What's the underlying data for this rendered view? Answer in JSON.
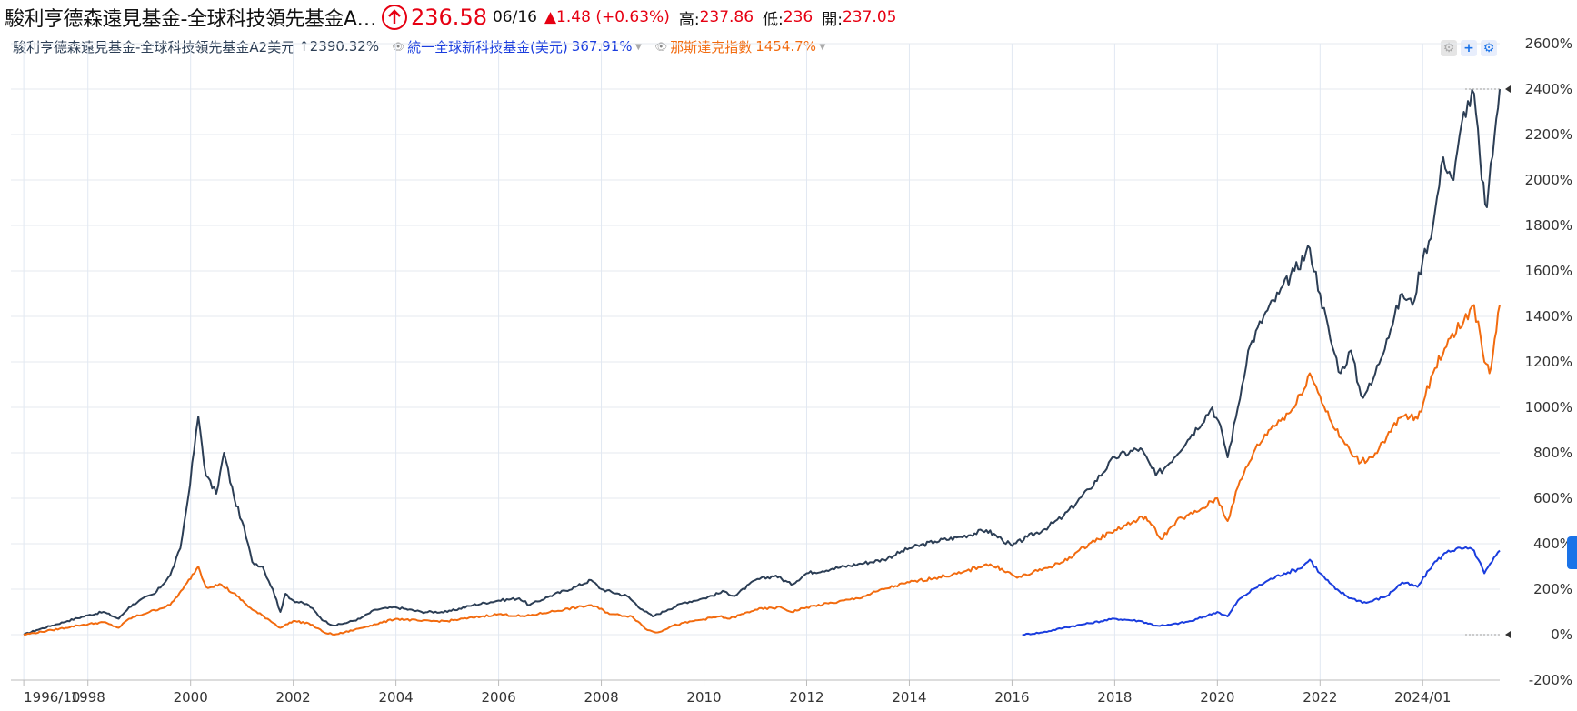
{
  "header": {
    "title": "駿利亨德森遠見基金-全球科技領先基金A…",
    "price": "236.58",
    "date": "06/16",
    "change": "▲1.48 (+0.63%)",
    "high_label": "高:",
    "high": "237.86",
    "low_label": "低:",
    "low": "236",
    "open_label": "開:",
    "open": "237.05"
  },
  "legend": [
    {
      "name": "駿利亨德森遠見基金-全球科技領先基金A2美元",
      "value": "↑2390.32%",
      "color": "#2c3e55"
    },
    {
      "name": "統一全球新科技基金(美元)",
      "value": "367.91%",
      "color": "#1a3dde"
    },
    {
      "name": "那斯達克指數",
      "value": "1454.7%",
      "color": "#f26b0f"
    }
  ],
  "chart_data": {
    "type": "line",
    "xlabel": "",
    "ylabel": "",
    "xlim": [
      1996.5,
      2025.5
    ],
    "ylim": [
      -200,
      2600
    ],
    "x_ticks": [
      "1996/10",
      "1998",
      "2000",
      "2002",
      "2004",
      "2006",
      "2008",
      "2010",
      "2012",
      "2014",
      "2016",
      "2018",
      "2020",
      "2022",
      "2024/01"
    ],
    "y_ticks": [
      "2600%",
      "2400%",
      "2200%",
      "2000%",
      "1800%",
      "1600%",
      "1400%",
      "1200%",
      "1000%",
      "800%",
      "600%",
      "400%",
      "200%",
      "0%",
      "-200%"
    ],
    "grid": true,
    "series": [
      {
        "name": "駿利亨德森遠見基金-全球科技領先基金A2美元",
        "color": "#2c3e55",
        "points": [
          [
            1996.75,
            0
          ],
          [
            1997.0,
            20
          ],
          [
            1997.3,
            40
          ],
          [
            1997.6,
            60
          ],
          [
            1998.0,
            85
          ],
          [
            1998.3,
            100
          ],
          [
            1998.6,
            70
          ],
          [
            1998.8,
            120
          ],
          [
            1999.0,
            150
          ],
          [
            1999.3,
            180
          ],
          [
            1999.6,
            260
          ],
          [
            1999.8,
            380
          ],
          [
            1999.95,
            600
          ],
          [
            2000.15,
            960
          ],
          [
            2000.3,
            700
          ],
          [
            2000.5,
            620
          ],
          [
            2000.65,
            800
          ],
          [
            2000.85,
            600
          ],
          [
            2001.0,
            500
          ],
          [
            2001.2,
            320
          ],
          [
            2001.4,
            300
          ],
          [
            2001.6,
            200
          ],
          [
            2001.75,
            100
          ],
          [
            2001.85,
            180
          ],
          [
            2002.0,
            150
          ],
          [
            2002.3,
            130
          ],
          [
            2002.6,
            60
          ],
          [
            2002.8,
            40
          ],
          [
            2003.0,
            50
          ],
          [
            2003.3,
            70
          ],
          [
            2003.6,
            110
          ],
          [
            2004.0,
            120
          ],
          [
            2004.5,
            100
          ],
          [
            2005.0,
            100
          ],
          [
            2005.5,
            130
          ],
          [
            2006.0,
            150
          ],
          [
            2006.4,
            160
          ],
          [
            2006.6,
            130
          ],
          [
            2007.0,
            170
          ],
          [
            2007.5,
            210
          ],
          [
            2007.8,
            240
          ],
          [
            2008.0,
            200
          ],
          [
            2008.5,
            170
          ],
          [
            2008.8,
            110
          ],
          [
            2009.0,
            80
          ],
          [
            2009.3,
            110
          ],
          [
            2009.6,
            140
          ],
          [
            2010.0,
            160
          ],
          [
            2010.4,
            190
          ],
          [
            2010.6,
            170
          ],
          [
            2011.0,
            240
          ],
          [
            2011.4,
            260
          ],
          [
            2011.7,
            220
          ],
          [
            2012.0,
            270
          ],
          [
            2012.5,
            290
          ],
          [
            2013.0,
            310
          ],
          [
            2013.5,
            330
          ],
          [
            2014.0,
            380
          ],
          [
            2014.5,
            410
          ],
          [
            2015.0,
            430
          ],
          [
            2015.5,
            460
          ],
          [
            2015.8,
            420
          ],
          [
            2016.0,
            390
          ],
          [
            2016.3,
            430
          ],
          [
            2016.6,
            460
          ],
          [
            2017.0,
            520
          ],
          [
            2017.5,
            640
          ],
          [
            2018.0,
            780
          ],
          [
            2018.5,
            820
          ],
          [
            2018.8,
            700
          ],
          [
            2019.0,
            740
          ],
          [
            2019.5,
            880
          ],
          [
            2019.9,
            1000
          ],
          [
            2020.1,
            880
          ],
          [
            2020.2,
            780
          ],
          [
            2020.4,
            1000
          ],
          [
            2020.6,
            1250
          ],
          [
            2020.9,
            1400
          ],
          [
            2021.2,
            1500
          ],
          [
            2021.5,
            1600
          ],
          [
            2021.8,
            1700
          ],
          [
            2022.0,
            1500
          ],
          [
            2022.2,
            1300
          ],
          [
            2022.4,
            1150
          ],
          [
            2022.6,
            1250
          ],
          [
            2022.8,
            1050
          ],
          [
            2023.0,
            1100
          ],
          [
            2023.3,
            1300
          ],
          [
            2023.6,
            1500
          ],
          [
            2023.8,
            1450
          ],
          [
            2024.0,
            1650
          ],
          [
            2024.2,
            1800
          ],
          [
            2024.4,
            2100
          ],
          [
            2024.6,
            2000
          ],
          [
            2024.8,
            2300
          ],
          [
            2025.0,
            2380
          ],
          [
            2025.15,
            2000
          ],
          [
            2025.25,
            1880
          ],
          [
            2025.4,
            2200
          ],
          [
            2025.5,
            2400
          ]
        ]
      },
      {
        "name": "統一全球新科技基金(美元)",
        "color": "#1a3dde",
        "points": [
          [
            2016.2,
            0
          ],
          [
            2016.6,
            10
          ],
          [
            2017.0,
            30
          ],
          [
            2017.5,
            50
          ],
          [
            2018.0,
            70
          ],
          [
            2018.5,
            60
          ],
          [
            2018.8,
            40
          ],
          [
            2019.0,
            40
          ],
          [
            2019.5,
            60
          ],
          [
            2020.0,
            100
          ],
          [
            2020.2,
            80
          ],
          [
            2020.4,
            150
          ],
          [
            2020.7,
            200
          ],
          [
            2021.0,
            240
          ],
          [
            2021.3,
            270
          ],
          [
            2021.6,
            290
          ],
          [
            2021.8,
            330
          ],
          [
            2022.0,
            270
          ],
          [
            2022.3,
            200
          ],
          [
            2022.6,
            160
          ],
          [
            2022.9,
            140
          ],
          [
            2023.3,
            170
          ],
          [
            2023.6,
            230
          ],
          [
            2023.9,
            210
          ],
          [
            2024.2,
            310
          ],
          [
            2024.5,
            370
          ],
          [
            2024.8,
            380
          ],
          [
            2025.0,
            370
          ],
          [
            2025.2,
            270
          ],
          [
            2025.35,
            320
          ],
          [
            2025.5,
            370
          ]
        ]
      },
      {
        "name": "那斯達克指數",
        "color": "#f26b0f",
        "points": [
          [
            1996.75,
            0
          ],
          [
            1997.3,
            20
          ],
          [
            1997.8,
            40
          ],
          [
            1998.3,
            55
          ],
          [
            1998.6,
            30
          ],
          [
            1998.8,
            70
          ],
          [
            1999.2,
            100
          ],
          [
            1999.6,
            130
          ],
          [
            1999.85,
            200
          ],
          [
            2000.15,
            300
          ],
          [
            2000.3,
            210
          ],
          [
            2000.6,
            220
          ],
          [
            2000.9,
            170
          ],
          [
            2001.2,
            110
          ],
          [
            2001.5,
            70
          ],
          [
            2001.75,
            30
          ],
          [
            2002.0,
            60
          ],
          [
            2002.3,
            50
          ],
          [
            2002.6,
            10
          ],
          [
            2002.8,
            0
          ],
          [
            2003.0,
            10
          ],
          [
            2003.5,
            40
          ],
          [
            2004.0,
            70
          ],
          [
            2004.5,
            60
          ],
          [
            2005.0,
            60
          ],
          [
            2005.5,
            75
          ],
          [
            2006.0,
            90
          ],
          [
            2006.5,
            80
          ],
          [
            2007.0,
            100
          ],
          [
            2007.8,
            130
          ],
          [
            2008.2,
            90
          ],
          [
            2008.6,
            80
          ],
          [
            2008.9,
            20
          ],
          [
            2009.1,
            10
          ],
          [
            2009.4,
            40
          ],
          [
            2009.8,
            60
          ],
          [
            2010.3,
            80
          ],
          [
            2010.5,
            70
          ],
          [
            2011.0,
            110
          ],
          [
            2011.5,
            120
          ],
          [
            2011.7,
            100
          ],
          [
            2012.0,
            120
          ],
          [
            2012.5,
            140
          ],
          [
            2013.0,
            160
          ],
          [
            2013.5,
            200
          ],
          [
            2014.0,
            230
          ],
          [
            2014.5,
            250
          ],
          [
            2015.0,
            270
          ],
          [
            2015.5,
            310
          ],
          [
            2015.8,
            290
          ],
          [
            2016.1,
            250
          ],
          [
            2016.5,
            280
          ],
          [
            2017.0,
            320
          ],
          [
            2017.5,
            400
          ],
          [
            2018.0,
            460
          ],
          [
            2018.6,
            520
          ],
          [
            2018.9,
            420
          ],
          [
            2019.2,
            500
          ],
          [
            2019.6,
            540
          ],
          [
            2020.0,
            600
          ],
          [
            2020.2,
            500
          ],
          [
            2020.4,
            650
          ],
          [
            2020.7,
            800
          ],
          [
            2021.0,
            900
          ],
          [
            2021.5,
            1000
          ],
          [
            2021.8,
            1150
          ],
          [
            2022.0,
            1050
          ],
          [
            2022.3,
            900
          ],
          [
            2022.6,
            800
          ],
          [
            2022.8,
            760
          ],
          [
            2023.0,
            780
          ],
          [
            2023.3,
            870
          ],
          [
            2023.6,
            960
          ],
          [
            2023.9,
            950
          ],
          [
            2024.2,
            1150
          ],
          [
            2024.5,
            1300
          ],
          [
            2024.8,
            1380
          ],
          [
            2025.0,
            1450
          ],
          [
            2025.2,
            1200
          ],
          [
            2025.3,
            1150
          ],
          [
            2025.4,
            1300
          ],
          [
            2025.5,
            1450
          ]
        ]
      }
    ]
  }
}
